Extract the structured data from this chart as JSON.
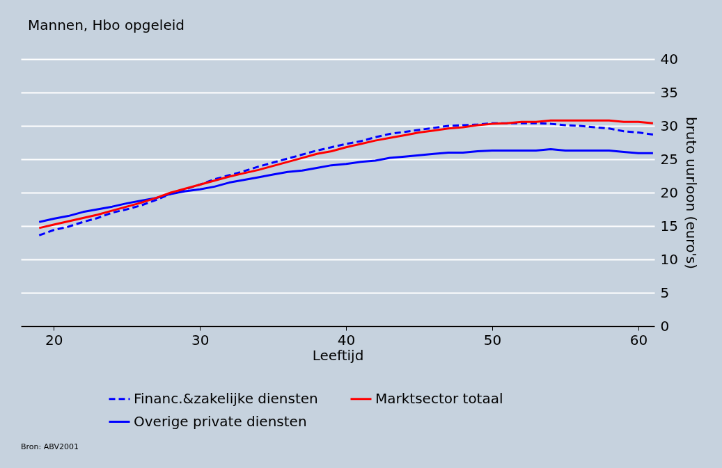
{
  "chart_data": {
    "type": "line",
    "title": "Mannen, Hbo opgeleid",
    "xlabel": "Leeftijd",
    "ylabel": "bruto uurloon (euro's)",
    "x": [
      19,
      20,
      21,
      22,
      23,
      24,
      25,
      26,
      27,
      28,
      29,
      30,
      31,
      32,
      33,
      34,
      35,
      36,
      37,
      38,
      39,
      40,
      41,
      42,
      43,
      44,
      45,
      46,
      47,
      48,
      49,
      50,
      51,
      52,
      53,
      54,
      55,
      56,
      57,
      58,
      59,
      60,
      61
    ],
    "series": [
      {
        "name": "Financ.&zakelijke diensten",
        "color": "#0000ff",
        "line_style": "dashed",
        "values": [
          13.6,
          14.4,
          14.9,
          15.6,
          16.2,
          17.0,
          17.5,
          18.1,
          18.9,
          19.8,
          20.5,
          21.2,
          22.0,
          22.6,
          23.2,
          23.9,
          24.5,
          25.1,
          25.7,
          26.3,
          26.8,
          27.3,
          27.7,
          28.3,
          28.8,
          29.1,
          29.4,
          29.7,
          30.0,
          30.1,
          30.2,
          30.4,
          30.4,
          30.4,
          30.4,
          30.3,
          30.1,
          30.0,
          29.8,
          29.6,
          29.2,
          29.0,
          28.7
        ]
      },
      {
        "name": "Overige private diensten",
        "color": "#0000ff",
        "line_style": "solid",
        "values": [
          15.6,
          16.1,
          16.5,
          17.1,
          17.5,
          17.9,
          18.4,
          18.8,
          19.2,
          19.8,
          20.2,
          20.5,
          20.9,
          21.5,
          21.9,
          22.3,
          22.7,
          23.1,
          23.3,
          23.7,
          24.1,
          24.3,
          24.6,
          24.8,
          25.2,
          25.4,
          25.6,
          25.8,
          26.0,
          26.0,
          26.2,
          26.3,
          26.3,
          26.3,
          26.3,
          26.5,
          26.3,
          26.3,
          26.3,
          26.3,
          26.1,
          25.9,
          25.9
        ]
      },
      {
        "name": "Marktsector totaal",
        "color": "#ff0000",
        "line_style": "solid",
        "values": [
          14.7,
          15.2,
          15.7,
          16.2,
          16.7,
          17.3,
          17.9,
          18.5,
          19.2,
          20.0,
          20.6,
          21.2,
          21.8,
          22.4,
          22.9,
          23.4,
          24.0,
          24.6,
          25.2,
          25.8,
          26.2,
          26.8,
          27.3,
          27.8,
          28.2,
          28.6,
          29.0,
          29.3,
          29.6,
          29.8,
          30.1,
          30.3,
          30.4,
          30.6,
          30.6,
          30.8,
          30.8,
          30.8,
          30.8,
          30.8,
          30.6,
          30.6,
          30.4
        ]
      }
    ],
    "xlim": [
      17.75,
      61.1
    ],
    "xticks": [
      20,
      30,
      40,
      50,
      60
    ],
    "ylim": [
      0,
      40
    ],
    "yticks": [
      0,
      5,
      10,
      15,
      20,
      25,
      30,
      35,
      40
    ],
    "grid": "y",
    "legend": "bottom",
    "marker": "none",
    "annotations": [
      "Bron: ABV2001"
    ]
  }
}
